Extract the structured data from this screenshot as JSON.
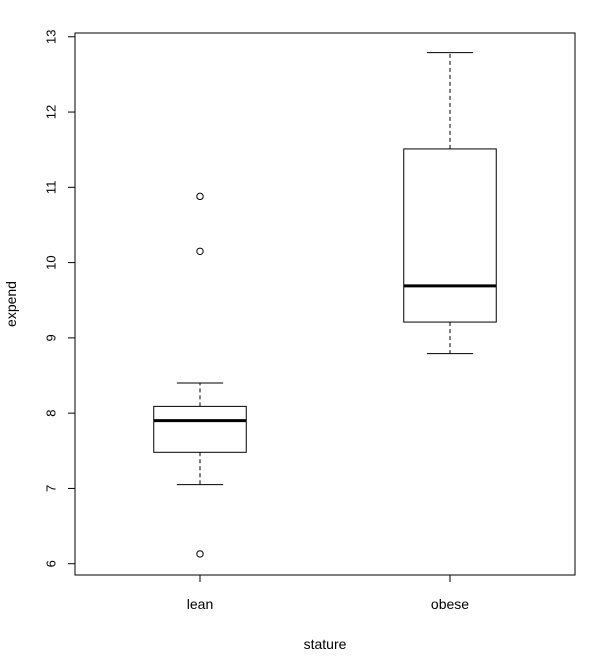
{
  "chart_data": {
    "type": "box",
    "xlabel": "stature",
    "ylabel": "expend",
    "ylim": [
      5.85,
      13.05
    ],
    "yticks": [
      6,
      7,
      8,
      9,
      10,
      11,
      12,
      13
    ],
    "ytick_labels": [
      "6",
      "7",
      "8",
      "9",
      "10",
      "11",
      "12",
      "13"
    ],
    "categories": [
      "lean",
      "obese"
    ],
    "boxes": [
      {
        "category": "lean",
        "lower_whisker": 7.05,
        "q1": 7.48,
        "median": 7.9,
        "q3": 8.09,
        "upper_whisker": 8.4,
        "outliers": [
          6.13,
          10.15,
          10.88
        ]
      },
      {
        "category": "obese",
        "lower_whisker": 8.79,
        "q1": 9.21,
        "median": 9.69,
        "q3": 11.51,
        "upper_whisker": 12.79,
        "outliers": []
      }
    ],
    "grid": false,
    "legend": "none"
  }
}
